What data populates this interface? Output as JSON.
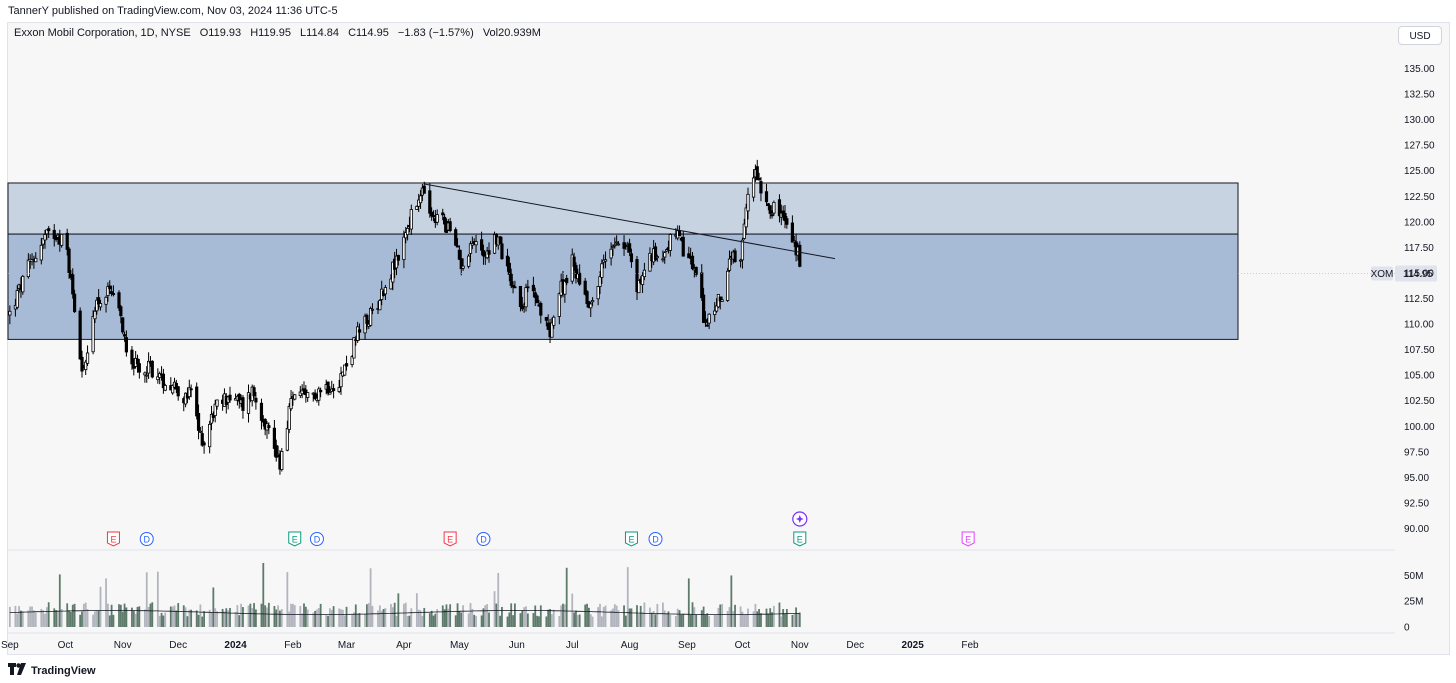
{
  "header": {
    "published_text": "TannerY published on TradingView.com, Nov 03, 2024 11:36 UTC-5"
  },
  "legend": {
    "symbol": "Exxon Mobil Corporation, 1D, NYSE",
    "open": "O119.93",
    "high": "H119.95",
    "low": "L114.84",
    "close": "C114.95",
    "change": "−1.83 (−1.57%)",
    "volume": "Vol20.939M"
  },
  "currency_button": "USD",
  "price_label": {
    "symbol": "XOM",
    "value": "114.95"
  },
  "footer": {
    "brand": "TradingView"
  },
  "colors": {
    "background": "#f8f7f8",
    "zone_upper": "#c8d3e1",
    "zone_lower": "#a8bbd6",
    "candle": "#000000",
    "earnings_red": "#f23645",
    "earnings_green": "#089981",
    "dividend_blue": "#2962ff",
    "future_purple": "#e040fb",
    "event_violet": "#7b2ff7"
  },
  "chart_data": {
    "type": "candlestick",
    "title": "Exxon Mobil Corporation, 1D, NYSE",
    "y_axis": {
      "ticks": [
        "135.00",
        "132.50",
        "130.00",
        "127.50",
        "125.00",
        "122.50",
        "120.00",
        "117.50",
        "115.00",
        "112.50",
        "110.00",
        "107.50",
        "105.00",
        "102.50",
        "100.00",
        "97.50",
        "95.00",
        "92.50",
        "90.00"
      ],
      "range": [
        89.0,
        137.0
      ]
    },
    "x_axis": {
      "labels": [
        "Sep",
        "Oct",
        "Nov",
        "Dec",
        "2024",
        "Feb",
        "Mar",
        "Apr",
        "May",
        "Jun",
        "Jul",
        "Aug",
        "Sep",
        "Oct",
        "Nov",
        "Dec",
        "2025",
        "Feb"
      ],
      "bold": [
        "2024",
        "2025"
      ]
    },
    "volume_axis": {
      "ticks": [
        "50M",
        "25M",
        "0"
      ],
      "max": 60
    },
    "zones": [
      {
        "name": "upper-zone",
        "price_top": 123.8,
        "price_bottom": 118.8
      },
      {
        "name": "lower-zone",
        "price_top": 118.8,
        "price_bottom": 108.5
      }
    ],
    "trendline": {
      "start": {
        "date": "2024-04-12",
        "price": 123.7
      },
      "end": {
        "date": "2024-11-20",
        "price": 116.4
      }
    },
    "price_path_keypoints": [
      [
        "2023-09-01",
        111.0
      ],
      [
        "2023-09-11",
        115.5
      ],
      [
        "2023-09-20",
        118.5
      ],
      [
        "2023-09-27",
        119.0
      ],
      [
        "2023-10-02",
        117.0
      ],
      [
        "2023-10-06",
        111.5
      ],
      [
        "2023-10-10",
        106.0
      ],
      [
        "2023-10-12",
        105.5
      ],
      [
        "2023-10-17",
        112.0
      ],
      [
        "2023-10-25",
        113.0
      ],
      [
        "2023-10-31",
        110.5
      ],
      [
        "2023-11-03",
        108.0
      ],
      [
        "2023-11-10",
        105.0
      ],
      [
        "2023-11-15",
        106.0
      ],
      [
        "2023-11-22",
        104.5
      ],
      [
        "2023-11-30",
        104.0
      ],
      [
        "2023-12-05",
        102.5
      ],
      [
        "2023-12-08",
        103.5
      ],
      [
        "2023-12-12",
        99.5
      ],
      [
        "2023-12-15",
        98.5
      ],
      [
        "2023-12-20",
        101.5
      ],
      [
        "2023-12-28",
        103.0
      ],
      [
        "2024-01-05",
        102.0
      ],
      [
        "2024-01-10",
        103.5
      ],
      [
        "2024-01-17",
        100.5
      ],
      [
        "2024-01-23",
        97.5
      ],
      [
        "2024-01-25",
        96.5
      ],
      [
        "2024-01-30",
        101.5
      ],
      [
        "2024-02-02",
        103.5
      ],
      [
        "2024-02-08",
        102.5
      ],
      [
        "2024-02-14",
        103.5
      ],
      [
        "2024-02-20",
        104.0
      ],
      [
        "2024-02-26",
        104.5
      ],
      [
        "2024-03-01",
        106.0
      ],
      [
        "2024-03-07",
        109.0
      ],
      [
        "2024-03-13",
        110.5
      ],
      [
        "2024-03-20",
        113.0
      ],
      [
        "2024-03-26",
        115.5
      ],
      [
        "2024-03-28",
        116.0
      ],
      [
        "2024-04-02",
        119.0
      ],
      [
        "2024-04-05",
        120.5
      ],
      [
        "2024-04-12",
        123.0
      ],
      [
        "2024-04-16",
        120.0
      ],
      [
        "2024-04-22",
        120.5
      ],
      [
        "2024-04-26",
        119.0
      ],
      [
        "2024-05-02",
        116.0
      ],
      [
        "2024-05-08",
        118.0
      ],
      [
        "2024-05-15",
        117.0
      ],
      [
        "2024-05-21",
        118.5
      ],
      [
        "2024-05-28",
        115.0
      ],
      [
        "2024-06-03",
        112.0
      ],
      [
        "2024-06-10",
        114.0
      ],
      [
        "2024-06-14",
        110.5
      ],
      [
        "2024-06-19",
        109.5
      ],
      [
        "2024-06-24",
        113.0
      ],
      [
        "2024-07-01",
        116.0
      ],
      [
        "2024-07-09",
        112.5
      ],
      [
        "2024-07-12",
        112.0
      ],
      [
        "2024-07-17",
        115.5
      ],
      [
        "2024-07-24",
        118.5
      ],
      [
        "2024-07-31",
        117.5
      ],
      [
        "2024-08-05",
        113.5
      ],
      [
        "2024-08-12",
        116.5
      ],
      [
        "2024-08-19",
        117.0
      ],
      [
        "2024-08-26",
        119.0
      ],
      [
        "2024-08-30",
        117.0
      ],
      [
        "2024-09-05",
        115.5
      ],
      [
        "2024-09-11",
        110.0
      ],
      [
        "2024-09-13",
        110.5
      ],
      [
        "2024-09-19",
        112.5
      ],
      [
        "2024-09-25",
        116.5
      ],
      [
        "2024-09-30",
        115.5
      ],
      [
        "2024-10-02",
        119.5
      ],
      [
        "2024-10-04",
        122.5
      ],
      [
        "2024-10-07",
        124.5
      ],
      [
        "2024-10-08",
        125.5
      ],
      [
        "2024-10-11",
        123.5
      ],
      [
        "2024-10-16",
        121.5
      ],
      [
        "2024-10-23",
        120.5
      ],
      [
        "2024-10-28",
        118.0
      ],
      [
        "2024-10-31",
        117.0
      ],
      [
        "2024-11-01",
        115.0
      ]
    ],
    "events": [
      {
        "type": "earnings",
        "label": "E",
        "date": "2023-10-27",
        "color": "red"
      },
      {
        "type": "dividend",
        "label": "D",
        "date": "2023-11-14",
        "color": "blue"
      },
      {
        "type": "earnings",
        "label": "E",
        "date": "2024-02-02",
        "color": "green"
      },
      {
        "type": "dividend",
        "label": "D",
        "date": "2024-02-14",
        "color": "blue"
      },
      {
        "type": "earnings",
        "label": "E",
        "date": "2024-04-26",
        "color": "red"
      },
      {
        "type": "dividend",
        "label": "D",
        "date": "2024-05-14",
        "color": "blue"
      },
      {
        "type": "earnings",
        "label": "E",
        "date": "2024-08-02",
        "color": "green"
      },
      {
        "type": "dividend",
        "label": "D",
        "date": "2024-08-15",
        "color": "blue"
      },
      {
        "type": "earnings",
        "label": "E",
        "date": "2024-11-01",
        "color": "green"
      },
      {
        "type": "earnings",
        "label": "E",
        "date": "2025-01-31",
        "color": "purple"
      }
    ]
  }
}
